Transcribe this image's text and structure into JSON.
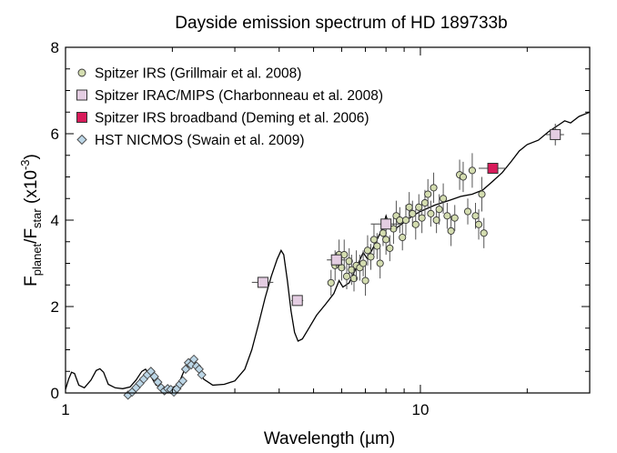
{
  "chart_data": {
    "type": "scatter",
    "title": "Dayside emission spectrum of HD 189733b",
    "xlabel": "Wavelength (µm)",
    "ylabel_parts": {
      "f1": "F",
      "s1": "planet",
      "slash": "/F",
      "s2": "star",
      "unit": " (x10",
      "exp": "-3",
      "close": ")"
    },
    "x_scale": "log",
    "xlim": [
      1,
      30
    ],
    "ylim": [
      0,
      8
    ],
    "x_ticks": [
      1,
      10
    ],
    "x_tick_labels": [
      "1",
      "10"
    ],
    "y_ticks": [
      0,
      2,
      4,
      6,
      8
    ],
    "y_tick_labels": [
      "0",
      "2",
      "4",
      "6",
      "8"
    ],
    "grid": false,
    "legend_position": "top-left",
    "model": {
      "name": "model spectrum",
      "color": "#000000",
      "points": [
        [
          1.0,
          0.08
        ],
        [
          1.02,
          0.32
        ],
        [
          1.04,
          0.48
        ],
        [
          1.06,
          0.45
        ],
        [
          1.09,
          0.18
        ],
        [
          1.13,
          0.12
        ],
        [
          1.18,
          0.3
        ],
        [
          1.22,
          0.52
        ],
        [
          1.25,
          0.56
        ],
        [
          1.28,
          0.48
        ],
        [
          1.32,
          0.2
        ],
        [
          1.38,
          0.12
        ],
        [
          1.45,
          0.1
        ],
        [
          1.52,
          0.14
        ],
        [
          1.58,
          0.3
        ],
        [
          1.64,
          0.5
        ],
        [
          1.68,
          0.55
        ],
        [
          1.73,
          0.42
        ],
        [
          1.8,
          0.18
        ],
        [
          1.9,
          0.1
        ],
        [
          2.0,
          0.12
        ],
        [
          2.08,
          0.2
        ],
        [
          2.15,
          0.48
        ],
        [
          2.22,
          0.75
        ],
        [
          2.28,
          0.8
        ],
        [
          2.36,
          0.6
        ],
        [
          2.45,
          0.32
        ],
        [
          2.6,
          0.18
        ],
        [
          2.8,
          0.2
        ],
        [
          3.0,
          0.28
        ],
        [
          3.2,
          0.55
        ],
        [
          3.35,
          1.0
        ],
        [
          3.5,
          1.6
        ],
        [
          3.65,
          2.2
        ],
        [
          3.8,
          2.7
        ],
        [
          3.95,
          3.1
        ],
        [
          4.05,
          3.3
        ],
        [
          4.12,
          3.2
        ],
        [
          4.22,
          2.6
        ],
        [
          4.32,
          1.9
        ],
        [
          4.42,
          1.4
        ],
        [
          4.52,
          1.2
        ],
        [
          4.65,
          1.25
        ],
        [
          4.85,
          1.5
        ],
        [
          5.1,
          1.8
        ],
        [
          5.4,
          2.05
        ],
        [
          5.7,
          2.3
        ],
        [
          5.9,
          2.6
        ],
        [
          6.05,
          2.45
        ],
        [
          6.3,
          2.55
        ],
        [
          6.6,
          2.9
        ],
        [
          6.9,
          3.25
        ],
        [
          7.1,
          3.1
        ],
        [
          7.5,
          3.5
        ],
        [
          7.8,
          3.8
        ],
        [
          8.0,
          4.1
        ],
        [
          8.15,
          3.9
        ],
        [
          8.5,
          3.8
        ],
        [
          9.0,
          3.95
        ],
        [
          9.5,
          4.1
        ],
        [
          10.0,
          4.2
        ],
        [
          11.0,
          4.35
        ],
        [
          12.0,
          4.45
        ],
        [
          13.0,
          4.55
        ],
        [
          14.0,
          4.6
        ],
        [
          15.0,
          4.7
        ],
        [
          16.0,
          4.9
        ],
        [
          17.0,
          5.1
        ],
        [
          18.0,
          5.35
        ],
        [
          19.0,
          5.6
        ],
        [
          20.0,
          5.75
        ],
        [
          21.5,
          5.85
        ],
        [
          23.0,
          6.05
        ],
        [
          24.5,
          6.2
        ],
        [
          25.5,
          6.3
        ],
        [
          26.5,
          6.25
        ],
        [
          28.0,
          6.4
        ],
        [
          30.0,
          6.5
        ]
      ]
    },
    "series": [
      {
        "name": "Spitzer IRS (Grillmair et al. 2008)",
        "marker": "circle",
        "color": "#d4ddb0",
        "points": [
          [
            5.6,
            2.55,
            0.3
          ],
          [
            5.75,
            2.95,
            0.35
          ],
          [
            5.9,
            3.2,
            0.35
          ],
          [
            6.0,
            2.9,
            0.3
          ],
          [
            6.1,
            3.2,
            0.35
          ],
          [
            6.2,
            2.7,
            0.3
          ],
          [
            6.3,
            3.05,
            0.3
          ],
          [
            6.4,
            2.85,
            0.35
          ],
          [
            6.5,
            2.65,
            0.3
          ],
          [
            6.6,
            2.95,
            0.35
          ],
          [
            6.75,
            2.9,
            0.3
          ],
          [
            6.9,
            3.0,
            0.3
          ],
          [
            7.0,
            2.6,
            0.35
          ],
          [
            7.1,
            3.3,
            0.35
          ],
          [
            7.25,
            3.15,
            0.3
          ],
          [
            7.4,
            3.55,
            0.35
          ],
          [
            7.55,
            3.4,
            0.3
          ],
          [
            7.7,
            3.0,
            0.35
          ],
          [
            7.85,
            3.7,
            0.3
          ],
          [
            8.0,
            3.55,
            0.35
          ],
          [
            8.2,
            3.35,
            0.3
          ],
          [
            8.4,
            3.8,
            0.35
          ],
          [
            8.55,
            4.1,
            0.35
          ],
          [
            8.75,
            4.0,
            0.3
          ],
          [
            8.9,
            3.6,
            0.3
          ],
          [
            9.1,
            4.0,
            0.35
          ],
          [
            9.3,
            4.3,
            0.35
          ],
          [
            9.5,
            4.15,
            0.3
          ],
          [
            9.7,
            3.9,
            0.35
          ],
          [
            9.9,
            4.3,
            0.3
          ],
          [
            10.1,
            4.05,
            0.35
          ],
          [
            10.3,
            4.4,
            0.3
          ],
          [
            10.5,
            4.6,
            0.35
          ],
          [
            10.7,
            4.15,
            0.3
          ],
          [
            10.9,
            4.75,
            0.35
          ],
          [
            11.1,
            4.0,
            0.3
          ],
          [
            11.3,
            4.25,
            0.35
          ],
          [
            11.6,
            4.5,
            0.35
          ],
          [
            11.9,
            4.1,
            0.3
          ],
          [
            12.2,
            3.75,
            0.35
          ],
          [
            12.5,
            4.05,
            0.3
          ],
          [
            12.9,
            5.05,
            0.35
          ],
          [
            13.2,
            5.0,
            0.35
          ],
          [
            13.6,
            4.2,
            0.3
          ],
          [
            14.0,
            5.15,
            0.4
          ],
          [
            14.3,
            4.1,
            0.3
          ],
          [
            14.6,
            3.9,
            0.35
          ],
          [
            14.9,
            4.6,
            0.4
          ],
          [
            15.1,
            3.7,
            0.35
          ]
        ]
      },
      {
        "name": "Spitzer IRAC/MIPS (Charbonneau et al. 2008)",
        "marker": "square",
        "color": "#e4cde2",
        "points": [
          [
            3.6,
            2.56,
            0.5,
            0.08
          ],
          [
            4.5,
            2.14,
            0.35,
            0.08
          ],
          [
            5.8,
            3.08,
            0.7,
            0.18
          ],
          [
            8.0,
            3.91,
            1.5,
            0.15
          ],
          [
            24.0,
            5.98,
            2.8,
            0.25
          ]
        ]
      },
      {
        "name": "Spitzer IRS broadband (Deming et al. 2006)",
        "marker": "square",
        "color": "#d81b5a",
        "points": [
          [
            16.0,
            5.2,
            2.8,
            0.1
          ]
        ]
      },
      {
        "name": "HST NICMOS (Swain et al. 2009)",
        "marker": "diamond",
        "color": "#bcd6e6",
        "points": [
          [
            1.5,
            -0.05
          ],
          [
            1.54,
            0.02
          ],
          [
            1.58,
            0.12
          ],
          [
            1.62,
            0.22
          ],
          [
            1.66,
            0.32
          ],
          [
            1.7,
            0.42
          ],
          [
            1.74,
            0.5
          ],
          [
            1.78,
            0.38
          ],
          [
            1.82,
            0.25
          ],
          [
            1.86,
            0.12
          ],
          [
            1.9,
            0.05
          ],
          [
            1.94,
            0.1
          ],
          [
            1.98,
            0.08
          ],
          [
            2.02,
            0.02
          ],
          [
            2.06,
            0.1
          ],
          [
            2.1,
            0.2
          ],
          [
            2.14,
            0.28
          ],
          [
            2.18,
            0.55
          ],
          [
            2.22,
            0.7
          ],
          [
            2.26,
            0.65
          ],
          [
            2.3,
            0.78
          ],
          [
            2.34,
            0.62
          ],
          [
            2.38,
            0.55
          ],
          [
            2.42,
            0.42
          ]
        ]
      }
    ]
  }
}
